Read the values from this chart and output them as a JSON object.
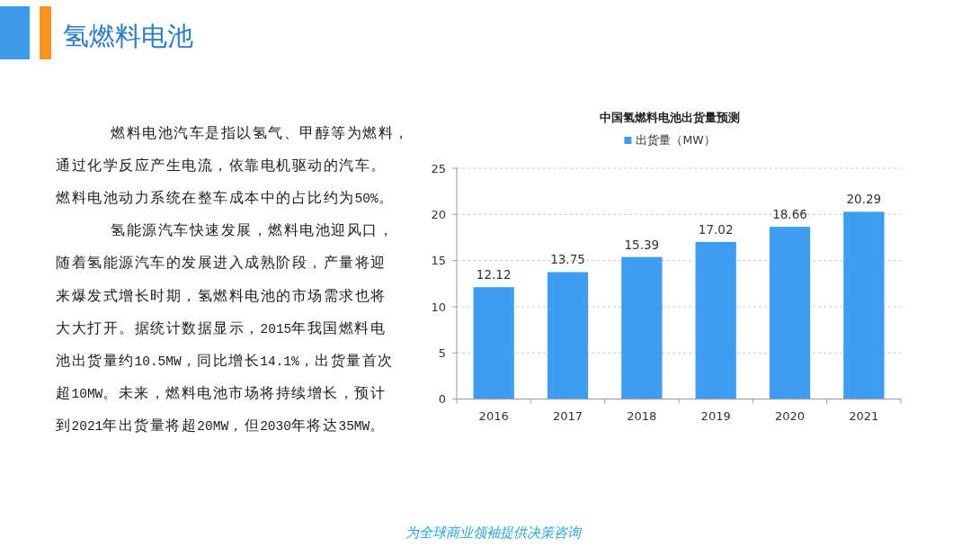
{
  "chart_data": [
    {
      "type": "other",
      "title": "氢燃料电池",
      "annotations": [
        "燃料电池汽车是指以氢气、甲醇等为燃料，通过化学反应产生电流，依靠电机驱动的汽车。燃料电池动力系统在整车成本中的占比约为50%。",
        "氢能源汽车快速发展，燃料电池迎风口，随着氢能源汽车的发展进入成熟阶段，产量将迎来爆发式增长时期，氢燃料电池的市场需求也将大大打开。据统计数据显示，2015年我国燃料电池出货量约10.5MW，同比增长14.1%，出货量首次超10MW。未来，燃料电池市场将持续增长，预计到2021年出货量将超20MW，但2030年将达35MW。",
        "为全球商业领袖提供决策咨询"
      ]
    },
    {
      "type": "bar",
      "title": "中国氢燃料电池出货量预测",
      "categories": [
        "2016",
        "2017",
        "2018",
        "2019",
        "2020",
        "2021"
      ],
      "series": [
        {
          "name": "出货量（MW）",
          "color": "#3d9df0",
          "values": [
            12.12,
            13.75,
            15.39,
            17.02,
            18.66,
            20.29
          ]
        }
      ],
      "ylim": [
        0,
        25
      ],
      "yticks": [
        0,
        5,
        10,
        15,
        20,
        25
      ],
      "grid": "y",
      "legend": "top",
      "data_labels": true
    }
  ]
}
